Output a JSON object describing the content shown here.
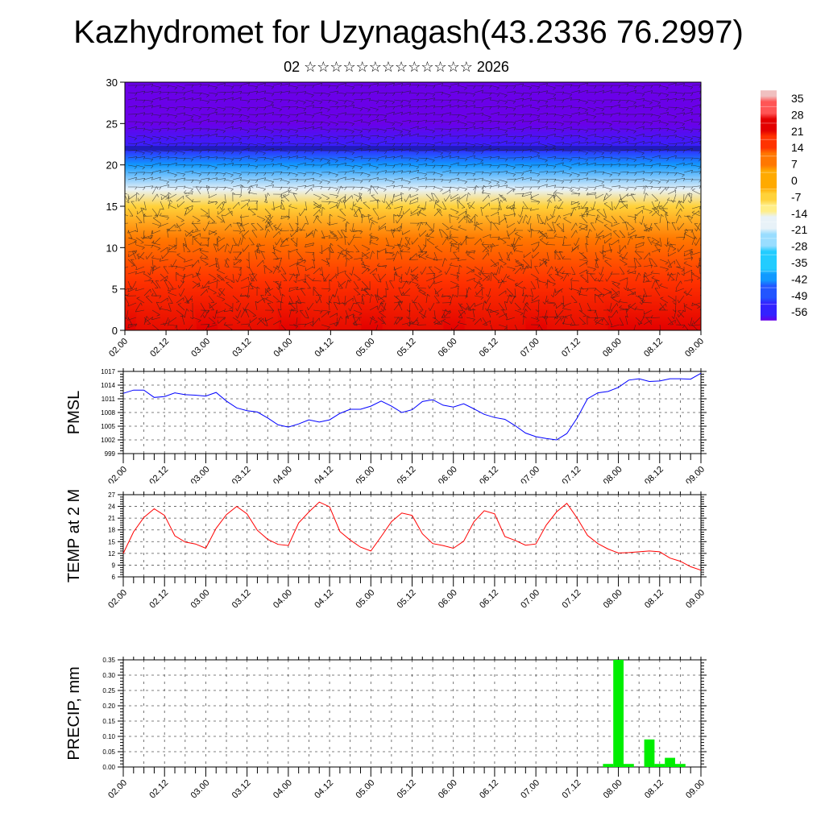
{
  "title": "Kazhydromet for Uzynagash(43.2336 76.2997)",
  "subtitle": "02 ☆☆☆☆☆☆☆☆☆☆☆☆☆ 2026",
  "time_labels": [
    "02.00",
    "02.12",
    "03.00",
    "03.12",
    "04.00",
    "04.12",
    "05.00",
    "05.12",
    "06.00",
    "06.12",
    "07.00",
    "07.12",
    "08.00",
    "08.12",
    "09.00"
  ],
  "colors": {
    "pmsl_line": "#0000ff",
    "temp_line": "#ff0000",
    "precip_bar": "#00ee00"
  },
  "chart_data": [
    {
      "type": "heatmap",
      "name": "temperature cross-section with wind barbs",
      "x": [
        "02.00",
        "02.12",
        "03.00",
        "03.12",
        "04.00",
        "04.12",
        "05.00",
        "05.12",
        "06.00",
        "06.12",
        "07.00",
        "07.12",
        "08.00",
        "08.12",
        "09.00"
      ],
      "ylim": [
        0,
        30
      ],
      "yticks": [
        0,
        5,
        10,
        15,
        20,
        25,
        30
      ],
      "colorbar_labels": [
        "35",
        "28",
        "21",
        "14",
        "7",
        "0",
        "-7",
        "-14",
        "-21",
        "-28",
        "-35",
        "-42",
        "-49",
        "-56"
      ],
      "colorbar_range": [
        -60,
        38
      ],
      "layers": [
        {
          "level": 0,
          "value": 25
        },
        {
          "level": 6,
          "value": 18
        },
        {
          "level": 11,
          "value": 8
        },
        {
          "level": 15,
          "value": -8
        },
        {
          "level": 17,
          "value": -20
        },
        {
          "level": 20,
          "value": -40
        },
        {
          "level": 22,
          "value": -55
        },
        {
          "level": 25,
          "value": -62
        },
        {
          "level": 30,
          "value": -60
        }
      ],
      "warm_cores_x": [
        0.5,
        1.5,
        2.5,
        3.5,
        4.5,
        5.5
      ],
      "grid": true
    },
    {
      "type": "line",
      "ylabel": "PMSL",
      "ylim": [
        999,
        1017
      ],
      "yticks": [
        999,
        1002,
        1005,
        1008,
        1011,
        1014,
        1017
      ],
      "x_step_hours": 3,
      "values": [
        1012.2,
        1012.9,
        1012.9,
        1011.3,
        1011.5,
        1012.3,
        1011.9,
        1011.8,
        1011.6,
        1012.4,
        1010.5,
        1009.0,
        1008.4,
        1008.1,
        1006.8,
        1005.3,
        1004.8,
        1005.5,
        1006.4,
        1005.9,
        1006.4,
        1007.8,
        1008.7,
        1008.7,
        1009.4,
        1010.5,
        1009.4,
        1008.0,
        1008.6,
        1010.4,
        1010.8,
        1009.6,
        1009.2,
        1009.9,
        1008.8,
        1007.6,
        1006.9,
        1006.5,
        1005.1,
        1003.5,
        1002.7,
        1002.3,
        1002.0,
        1003.4,
        1006.8,
        1011.0,
        1012.3,
        1012.6,
        1013.5,
        1015.1,
        1015.4,
        1014.8,
        1014.9,
        1015.4,
        1015.4,
        1015.3,
        1016.6
      ]
    },
    {
      "type": "line",
      "ylabel": "TEMP at 2 M",
      "ylim": [
        6,
        27
      ],
      "yticks": [
        6,
        9,
        12,
        15,
        18,
        21,
        24,
        27
      ],
      "x_step_hours": 3,
      "values": [
        12.0,
        17.5,
        21.2,
        23.4,
        21.7,
        16.5,
        14.9,
        14.4,
        13.3,
        18.4,
        21.9,
        24.0,
        22.1,
        17.9,
        15.6,
        14.3,
        14.0,
        19.8,
        22.6,
        25.1,
        23.9,
        17.6,
        15.4,
        13.6,
        12.6,
        16.3,
        20.1,
        22.3,
        21.7,
        17.0,
        14.5,
        14.0,
        13.3,
        15.1,
        20.1,
        22.9,
        22.1,
        16.3,
        15.3,
        14.1,
        14.4,
        19.2,
        22.6,
        24.8,
        21.0,
        16.6,
        14.5,
        13.1,
        12.1,
        12.2,
        12.4,
        12.6,
        12.4,
        10.8,
        10.0,
        8.6,
        7.7
      ]
    },
    {
      "type": "bar",
      "ylabel": "PRECIP, mm",
      "ylim": [
        0,
        0.35
      ],
      "yticks": [
        "0.00",
        "0.05",
        "0.10",
        "0.15",
        "0.20",
        "0.25",
        "0.30",
        "0.35"
      ],
      "x_step_hours": 3,
      "values": [
        0,
        0,
        0,
        0,
        0,
        0,
        0,
        0,
        0,
        0,
        0,
        0,
        0,
        0,
        0,
        0,
        0,
        0,
        0,
        0,
        0,
        0,
        0,
        0,
        0,
        0,
        0,
        0,
        0,
        0,
        0,
        0,
        0,
        0,
        0,
        0,
        0,
        0,
        0,
        0,
        0,
        0,
        0,
        0,
        0,
        0,
        0,
        0.01,
        0.35,
        0.01,
        0,
        0.09,
        0.01,
        0.03,
        0.01,
        0,
        0
      ]
    }
  ]
}
